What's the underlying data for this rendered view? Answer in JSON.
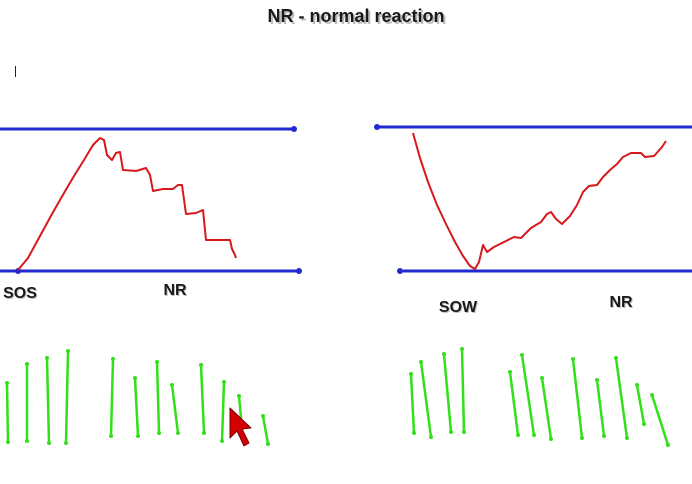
{
  "title": "NR - normal reaction",
  "colors": {
    "channel_line": "#1f2bd1",
    "price_line": "#d7191c",
    "volume_bar": "#32e01a",
    "pointer": "#d40000",
    "text": "#1a1a1a"
  },
  "panels": [
    {
      "id": "left",
      "description_labels": [
        "SOS",
        "NR"
      ],
      "labels": {
        "start": "SOS",
        "reaction": "NR"
      }
    },
    {
      "id": "right",
      "labels": {
        "start": "SOW",
        "reaction": "NR"
      }
    }
  ],
  "icons": [
    "text-cursor-icon",
    "mouse-pointer-icon"
  ]
}
